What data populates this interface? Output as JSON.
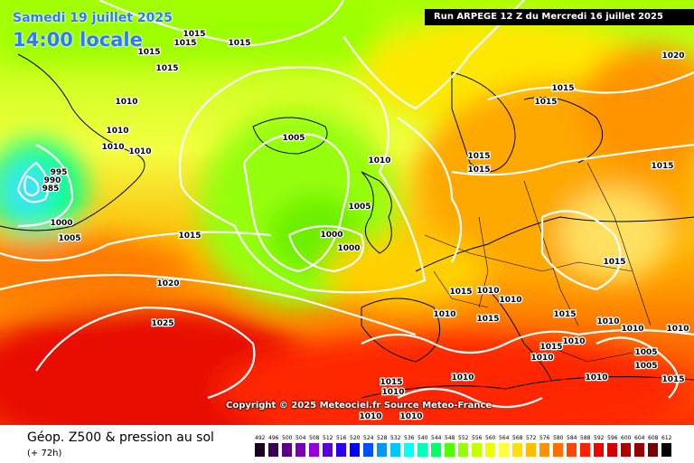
{
  "header": {
    "date": "Samedi 19 juillet 2025",
    "local_time": "14:00 locale",
    "run": "Run ARPEGE 12 Z du Mercredi 16 juillet 2025"
  },
  "copyright": "Copyright © 2025 Meteociel.fr Source Meteo-France",
  "footer": {
    "title": "Géop. Z500 & pression au sol",
    "lead": "(+ 72h)"
  },
  "scale": {
    "labels": [
      "492",
      "496",
      "500",
      "504",
      "508",
      "512",
      "516",
      "520",
      "524",
      "528",
      "532",
      "536",
      "540",
      "544",
      "548",
      "552",
      "556",
      "560",
      "564",
      "568",
      "572",
      "576",
      "580",
      "584",
      "588",
      "592",
      "596",
      "600",
      "604",
      "608",
      "612"
    ],
    "colors": [
      "#1a0020",
      "#3c0052",
      "#5a0082",
      "#7a00b4",
      "#9400d8",
      "#5a00e0",
      "#2a00f0",
      "#0000ff",
      "#0050ff",
      "#0096ff",
      "#00c8ff",
      "#00ffff",
      "#00ffb4",
      "#00ff64",
      "#50ff00",
      "#96ff00",
      "#c8ff00",
      "#f0ff00",
      "#ffff40",
      "#ffe000",
      "#ffbc00",
      "#ff9400",
      "#ff6e00",
      "#ff4600",
      "#ff2000",
      "#f00000",
      "#d20000",
      "#b40000",
      "#960000",
      "#780000",
      "#000000"
    ]
  },
  "isobar_labels": [
    "1015",
    "1015",
    "1015",
    "1015",
    "1015",
    "1010",
    "1010",
    "1010",
    "1010",
    "995",
    "990",
    "985",
    "1000",
    "1005",
    "1015",
    "1005",
    "1005",
    "1000",
    "1000",
    "1010",
    "1015",
    "1015",
    "1020",
    "1020",
    "1015",
    "1015",
    "1015",
    "1015",
    "1010",
    "1015",
    "1010",
    "1015",
    "1010",
    "1010",
    "1010",
    "1010",
    "1015",
    "1025",
    "1010",
    "1015",
    "1010",
    "1010",
    "1010",
    "1005",
    "1005",
    "1010",
    "1015",
    "1015",
    "1010",
    "1010"
  ]
}
